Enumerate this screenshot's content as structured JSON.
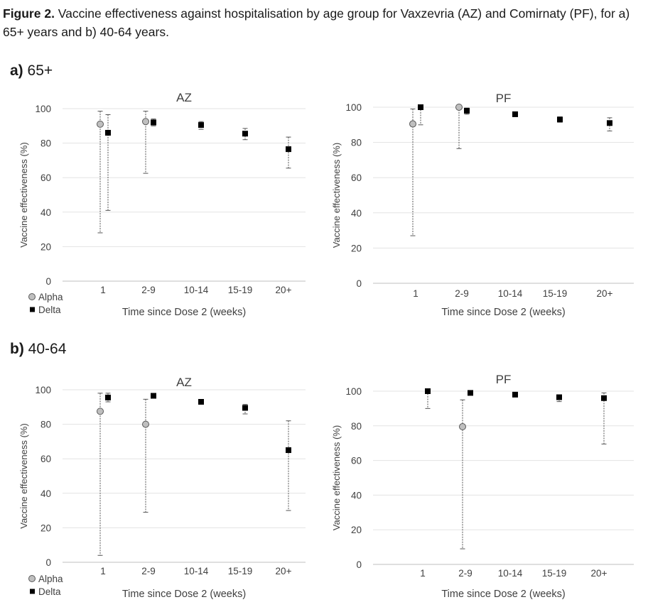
{
  "caption": {
    "bold": "Figure 2.",
    "text": " Vaccine effectiveness against hospitalisation by age group for Vaxzevria (AZ) and Comirnaty (PF), for a) 65+ years and b) 40-64 years."
  },
  "sections": [
    {
      "bold": "a)",
      "label": " 65+"
    },
    {
      "bold": "b)",
      "label": " 40-64"
    }
  ],
  "chart_data": [
    {
      "type": "scatter",
      "panel": "a) 65+",
      "title": "AZ",
      "xlabel": "Time since Dose 2 (weeks)",
      "ylabel": "Vaccine effectiveness (%)",
      "ylim": [
        0,
        100
      ],
      "yticks": [
        0,
        20,
        40,
        60,
        80,
        100
      ],
      "categories": [
        "1",
        "2-9",
        "10-14",
        "15-19",
        "20+"
      ],
      "grid": true,
      "legend": "bottom-left",
      "series": [
        {
          "name": "Alpha",
          "marker": "circle",
          "color": "#bfbfbf",
          "values": [
            91,
            92.5,
            null,
            null,
            null
          ],
          "lower": [
            28,
            62.5,
            null,
            null,
            null
          ],
          "upper": [
            98.5,
            98.5,
            null,
            null,
            null
          ]
        },
        {
          "name": "Delta",
          "marker": "square",
          "color": "#000000",
          "values": [
            86,
            92,
            90.5,
            85.5,
            76.5
          ],
          "lower": [
            41,
            90,
            88,
            82,
            65.5
          ],
          "upper": [
            96.5,
            94,
            92.5,
            88.5,
            83.5
          ]
        }
      ]
    },
    {
      "type": "scatter",
      "panel": "a) 65+",
      "title": "PF",
      "xlabel": "Time since Dose 2 (weeks)",
      "ylabel": "Vaccine effectiveness (%)",
      "ylim": [
        0,
        100
      ],
      "yticks": [
        0,
        20,
        40,
        60,
        80,
        100
      ],
      "categories": [
        "1",
        "2-9",
        "10-14",
        "15-19",
        "20+"
      ],
      "grid": true,
      "legend": "none",
      "series": [
        {
          "name": "Alpha",
          "marker": "circle",
          "color": "#bfbfbf",
          "values": [
            90.5,
            100,
            null,
            null,
            null
          ],
          "lower": [
            27,
            76.5,
            null,
            null,
            null
          ],
          "upper": [
            99,
            100,
            null,
            null,
            null
          ]
        },
        {
          "name": "Delta",
          "marker": "square",
          "color": "#000000",
          "values": [
            100,
            98,
            96,
            93,
            91
          ],
          "lower": [
            90,
            96,
            95,
            91.5,
            86.5
          ],
          "upper": [
            100,
            99.5,
            97,
            94.5,
            94
          ]
        }
      ]
    },
    {
      "type": "scatter",
      "panel": "b) 40-64",
      "title": "AZ",
      "xlabel": "Time since Dose 2 (weeks)",
      "ylabel": "Vaccine effectiveness (%)",
      "ylim": [
        0,
        100
      ],
      "yticks": [
        0,
        20,
        40,
        60,
        80,
        100
      ],
      "categories": [
        "1",
        "2-9",
        "10-14",
        "15-19",
        "20+"
      ],
      "grid": true,
      "legend": "bottom-left",
      "series": [
        {
          "name": "Alpha",
          "marker": "circle",
          "color": "#bfbfbf",
          "values": [
            87.5,
            80,
            null,
            null,
            null
          ],
          "lower": [
            4,
            29,
            null,
            null,
            null
          ],
          "upper": [
            98,
            94.5,
            null,
            null,
            null
          ]
        },
        {
          "name": "Delta",
          "marker": "square",
          "color": "#000000",
          "values": [
            95.5,
            96.5,
            93,
            89.5,
            65
          ],
          "lower": [
            93,
            95.5,
            92,
            86,
            30
          ],
          "upper": [
            98,
            97.5,
            94,
            91.5,
            82
          ]
        }
      ]
    },
    {
      "type": "scatter",
      "panel": "b) 40-64",
      "title": "PF",
      "xlabel": "Time since Dose 2 (weeks)",
      "ylabel": "Vaccine effectiveness (%)",
      "ylim": [
        0,
        100
      ],
      "yticks": [
        0,
        20,
        40,
        60,
        80,
        100
      ],
      "categories": [
        "1",
        "2-9",
        "10-14",
        "15-19",
        "20+"
      ],
      "grid": true,
      "legend": "none",
      "series": [
        {
          "name": "Alpha",
          "marker": "circle",
          "color": "#bfbfbf",
          "values": [
            null,
            79.5,
            null,
            null,
            null
          ],
          "lower": [
            null,
            9,
            null,
            null,
            null
          ],
          "upper": [
            null,
            95,
            null,
            null,
            null
          ]
        },
        {
          "name": "Delta",
          "marker": "square",
          "color": "#000000",
          "values": [
            100,
            99,
            98,
            96.5,
            96
          ],
          "lower": [
            90,
            98,
            97,
            94,
            69.5
          ],
          "upper": [
            100,
            100,
            99,
            97.5,
            99
          ]
        }
      ]
    }
  ]
}
